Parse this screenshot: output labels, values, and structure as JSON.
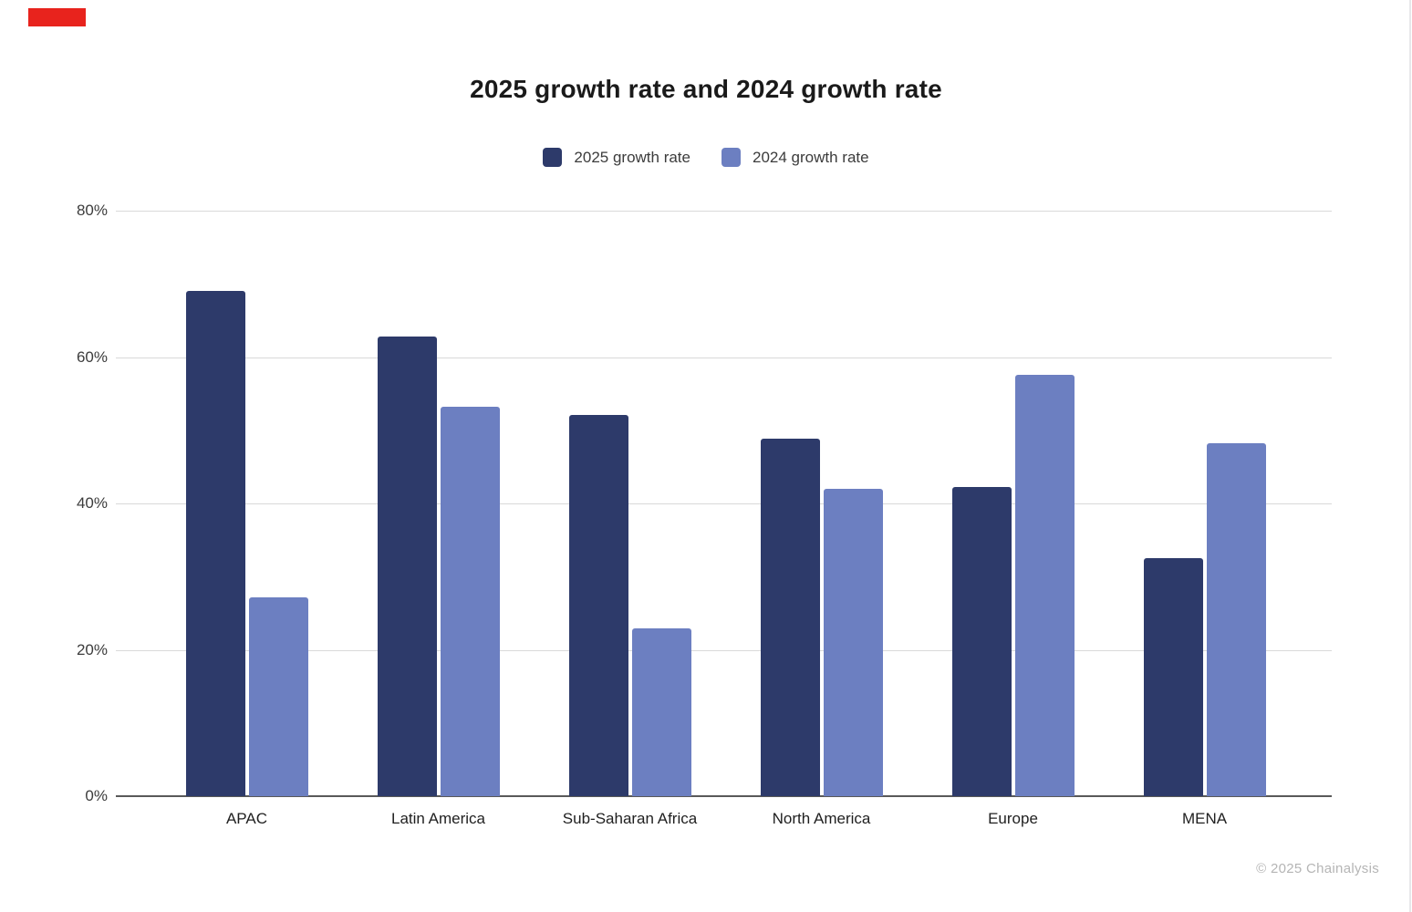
{
  "brand": {
    "mark_color": "#e8231d"
  },
  "chart_data": {
    "type": "bar",
    "title": "2025 growth rate and 2024 growth rate",
    "categories": [
      "APAC",
      "Latin America",
      "Sub-Saharan Africa",
      "North America",
      "Europe",
      "MENA"
    ],
    "series": [
      {
        "name": "2025 growth rate",
        "color": "#2d3a6a",
        "values": [
          69.0,
          62.8,
          52.1,
          48.8,
          42.3,
          32.5
        ]
      },
      {
        "name": "2024 growth rate",
        "color": "#6c7fc1",
        "values": [
          27.2,
          53.2,
          22.9,
          42.0,
          57.6,
          48.2
        ]
      }
    ],
    "xlabel": "",
    "ylabel": "",
    "ylim": [
      0,
      80
    ],
    "yticks": [
      0,
      20,
      40,
      60,
      80
    ],
    "ytick_labels": [
      "0%",
      "20%",
      "40%",
      "60%",
      "80%"
    ],
    "grid": true,
    "legend_position": "top-center",
    "gridline_color": "#d9d9d9",
    "axis_line_color": "#595959",
    "tick_label_color": "#3c3c3c",
    "category_label_color": "#1f1f1f",
    "title_color": "#1a1a1a"
  },
  "footer": {
    "copyright": "© 2025 Chainalysis",
    "color": "#b5b5b5"
  }
}
